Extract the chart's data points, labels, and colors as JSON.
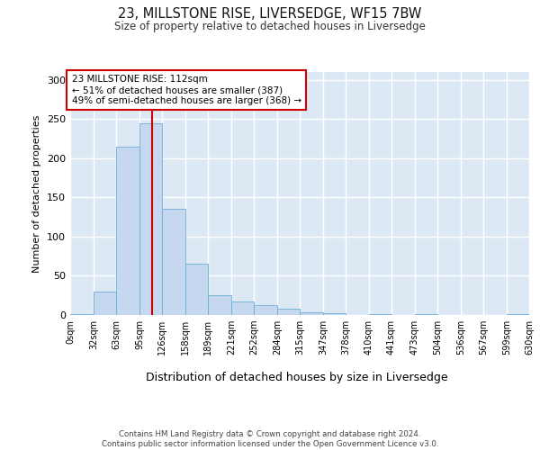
{
  "title": "23, MILLSTONE RISE, LIVERSEDGE, WF15 7BW",
  "subtitle": "Size of property relative to detached houses in Liversedge",
  "xlabel": "Distribution of detached houses by size in Liversedge",
  "ylabel": "Number of detached properties",
  "bar_color": "#c5d8ef",
  "bar_edge_color": "#6baed6",
  "background_color": "#dce9f5",
  "vline_x": 112,
  "vline_color": "#cc0000",
  "annotation_text": "23 MILLSTONE RISE: 112sqm\n← 51% of detached houses are smaller (387)\n49% of semi-detached houses are larger (368) →",
  "annotation_box_color": "#ffffff",
  "annotation_box_edge": "#cc0000",
  "bins": [
    0,
    32,
    63,
    95,
    126,
    158,
    189,
    221,
    252,
    284,
    315,
    347,
    378,
    410,
    441,
    473,
    504,
    536,
    567,
    599,
    630
  ],
  "bar_heights": [
    1,
    30,
    215,
    245,
    135,
    65,
    25,
    17,
    13,
    8,
    4,
    2,
    0,
    1,
    0,
    1,
    0,
    0,
    0,
    1
  ],
  "ylim": [
    0,
    310
  ],
  "yticks": [
    0,
    50,
    100,
    150,
    200,
    250,
    300
  ],
  "footer_text": "Contains HM Land Registry data © Crown copyright and database right 2024.\nContains public sector information licensed under the Open Government Licence v3.0.",
  "tick_labels": [
    "0sqm",
    "32sqm",
    "63sqm",
    "95sqm",
    "126sqm",
    "158sqm",
    "189sqm",
    "221sqm",
    "252sqm",
    "284sqm",
    "315sqm",
    "347sqm",
    "378sqm",
    "410sqm",
    "441sqm",
    "473sqm",
    "504sqm",
    "536sqm",
    "567sqm",
    "599sqm",
    "630sqm"
  ]
}
